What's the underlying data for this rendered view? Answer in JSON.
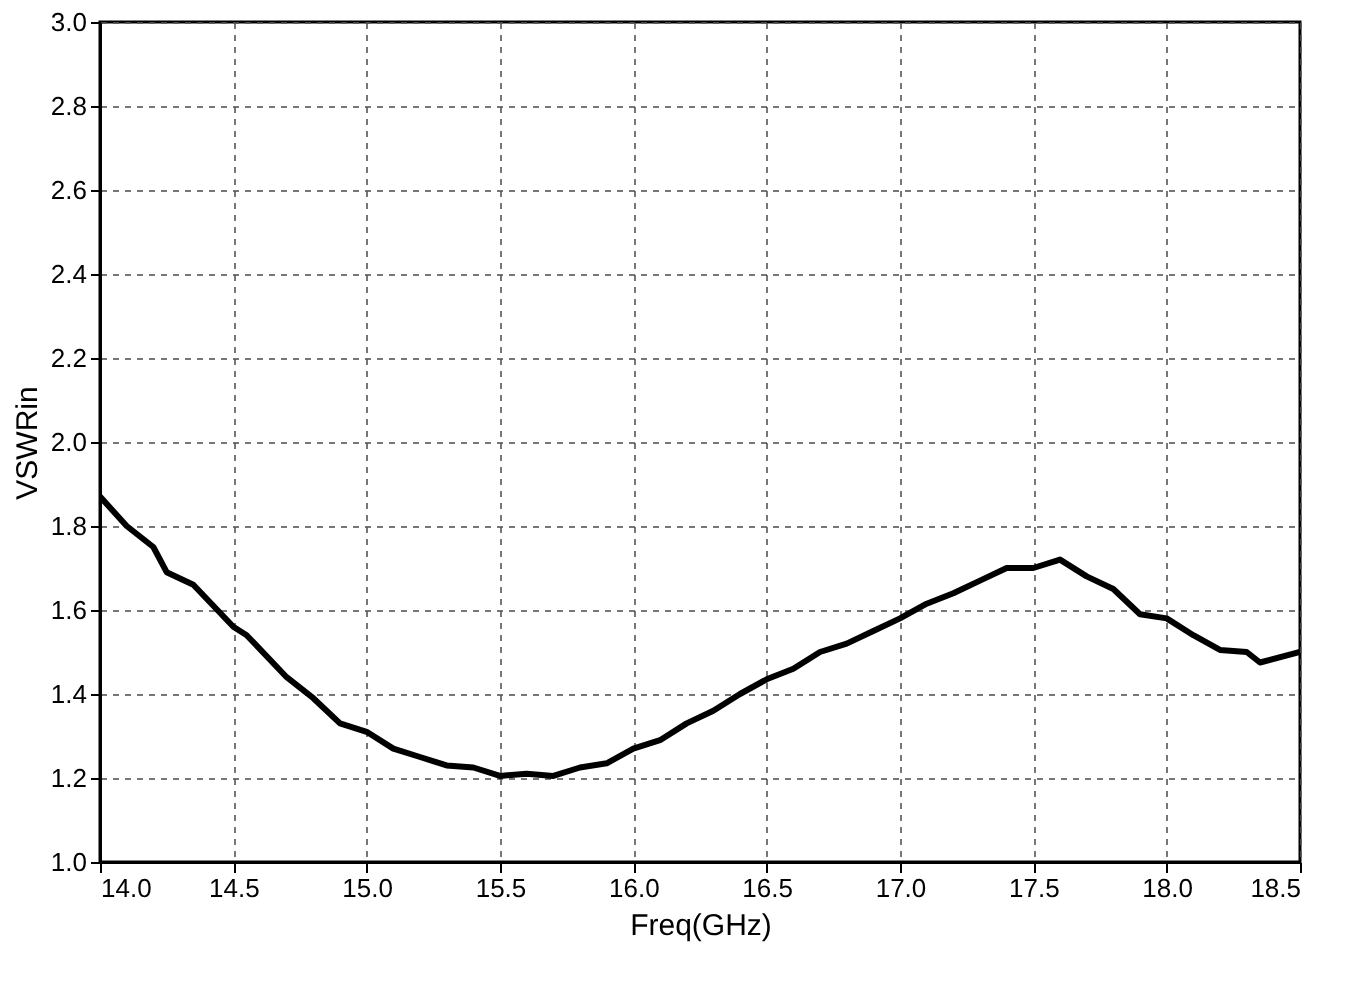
{
  "chart_data": {
    "type": "line",
    "xlabel": "Freq(GHz)",
    "ylabel": "VSWRin",
    "x": [
      14.0,
      14.1,
      14.2,
      14.25,
      14.35,
      14.5,
      14.55,
      14.7,
      14.8,
      14.9,
      15.0,
      15.1,
      15.2,
      15.3,
      15.4,
      15.5,
      15.6,
      15.7,
      15.8,
      15.9,
      16.0,
      16.1,
      16.2,
      16.3,
      16.4,
      16.5,
      16.6,
      16.7,
      16.8,
      16.9,
      17.0,
      17.1,
      17.2,
      17.3,
      17.4,
      17.5,
      17.6,
      17.7,
      17.8,
      17.9,
      18.0,
      18.1,
      18.2,
      18.3,
      18.35,
      18.5
    ],
    "series": [
      {
        "color": "#000000",
        "values": [
          1.87,
          1.8,
          1.75,
          1.69,
          1.66,
          1.56,
          1.54,
          1.44,
          1.39,
          1.33,
          1.31,
          1.27,
          1.25,
          1.23,
          1.225,
          1.205,
          1.21,
          1.205,
          1.225,
          1.235,
          1.27,
          1.29,
          1.33,
          1.36,
          1.4,
          1.435,
          1.46,
          1.5,
          1.52,
          1.55,
          1.58,
          1.615,
          1.64,
          1.67,
          1.7,
          1.7,
          1.72,
          1.68,
          1.65,
          1.59,
          1.58,
          1.54,
          1.505,
          1.5,
          1.475,
          1.5
        ]
      }
    ],
    "xlim": [
      14.0,
      18.5
    ],
    "xticks": [
      {
        "value": 14.0,
        "label": "14.0"
      },
      {
        "value": 14.5,
        "label": "14.5"
      },
      {
        "value": 15.0,
        "label": "15.0"
      },
      {
        "value": 15.5,
        "label": "15.5"
      },
      {
        "value": 16.0,
        "label": "16.0"
      },
      {
        "value": 16.5,
        "label": "16.5"
      },
      {
        "value": 17.0,
        "label": "17.0"
      },
      {
        "value": 17.5,
        "label": "17.5"
      },
      {
        "value": 18.0,
        "label": "18.0"
      },
      {
        "value": 18.5,
        "label": "18.5"
      }
    ],
    "ylim": [
      1.0,
      3.0
    ],
    "yticks": [
      {
        "value": 1.0,
        "label": "1.0"
      },
      {
        "value": 1.2,
        "label": "1.2"
      },
      {
        "value": 1.4,
        "label": "1.4"
      },
      {
        "value": 1.6,
        "label": "1.6"
      },
      {
        "value": 1.8,
        "label": "1.8"
      },
      {
        "value": 2.0,
        "label": "2.0"
      },
      {
        "value": 2.2,
        "label": "2.2"
      },
      {
        "value": 2.4,
        "label": "2.4"
      },
      {
        "value": 2.6,
        "label": "2.6"
      },
      {
        "value": 2.8,
        "label": "2.8"
      },
      {
        "value": 3.0,
        "label": "3.0"
      }
    ],
    "grid": true,
    "line_style": "solid"
  }
}
